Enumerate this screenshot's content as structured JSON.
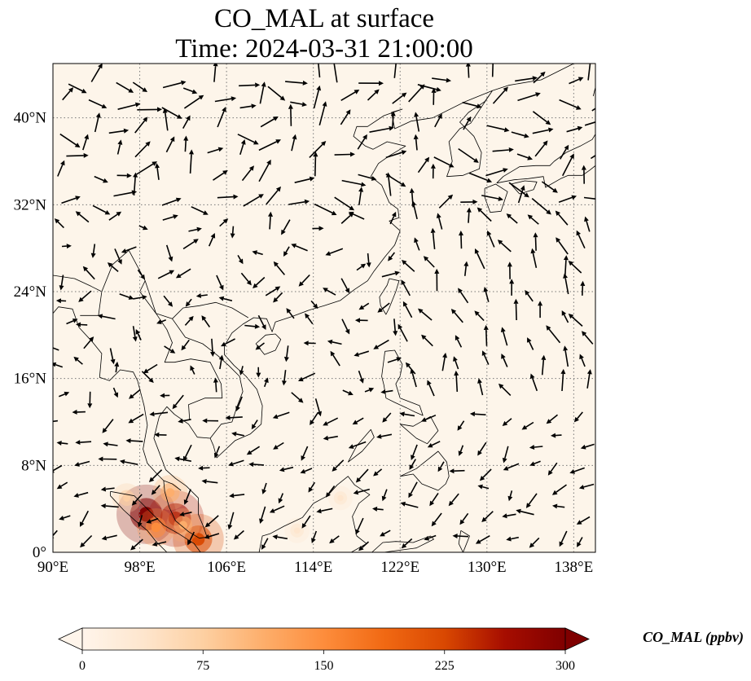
{
  "title": {
    "line1": "CO_MAL at surface",
    "line2": "Time: 2024-03-31 21:00:00"
  },
  "map": {
    "extent": {
      "lon_min": 90,
      "lon_max": 140,
      "lat_min": 0,
      "lat_max": 45
    },
    "background_color": "#fdf5ea",
    "gridlines": true,
    "lat_ticks": [
      {
        "value": 0,
        "label": "0°"
      },
      {
        "value": 8,
        "label": "8°N"
      },
      {
        "value": 16,
        "label": "16°N"
      },
      {
        "value": 24,
        "label": "24°N"
      },
      {
        "value": 32,
        "label": "32°N"
      },
      {
        "value": 40,
        "label": "40°N"
      }
    ],
    "lon_ticks": [
      {
        "value": 90,
        "label": "90°E"
      },
      {
        "value": 98,
        "label": "98°E"
      },
      {
        "value": 106,
        "label": "106°E"
      },
      {
        "value": 114,
        "label": "114°E"
      },
      {
        "value": 122,
        "label": "122°E"
      },
      {
        "value": 130,
        "label": "130°E"
      },
      {
        "value": 138,
        "label": "138°E"
      }
    ],
    "hotspots": [
      {
        "lon": 98.6,
        "lat": 3.5,
        "value": 290
      },
      {
        "lon": 101.3,
        "lat": 3.1,
        "value": 270
      },
      {
        "lon": 103.4,
        "lat": 1.2,
        "value": 230
      },
      {
        "lon": 96.8,
        "lat": 5.0,
        "value": 80
      },
      {
        "lon": 99.5,
        "lat": 2.3,
        "value": 140
      },
      {
        "lon": 100.8,
        "lat": 5.5,
        "value": 120
      },
      {
        "lon": 102.0,
        "lat": 2.5,
        "value": 110
      },
      {
        "lon": 112.5,
        "lat": 2.0,
        "value": 50
      },
      {
        "lon": 116.5,
        "lat": 5.0,
        "value": 45
      }
    ]
  },
  "colorbar": {
    "title": "CO_MAL (ppbv)",
    "min": 0,
    "max": 300,
    "ticks": [
      {
        "value": 0,
        "label": "0"
      },
      {
        "value": 75,
        "label": "75"
      },
      {
        "value": 150,
        "label": "150"
      },
      {
        "value": 225,
        "label": "225"
      },
      {
        "value": 300,
        "label": "300"
      }
    ],
    "colors": [
      "#fff5eb",
      "#fee6ce",
      "#fdd0a2",
      "#fdae6b",
      "#fd8d3c",
      "#f16913",
      "#d94801",
      "#a60d00",
      "#7f0000"
    ]
  }
}
